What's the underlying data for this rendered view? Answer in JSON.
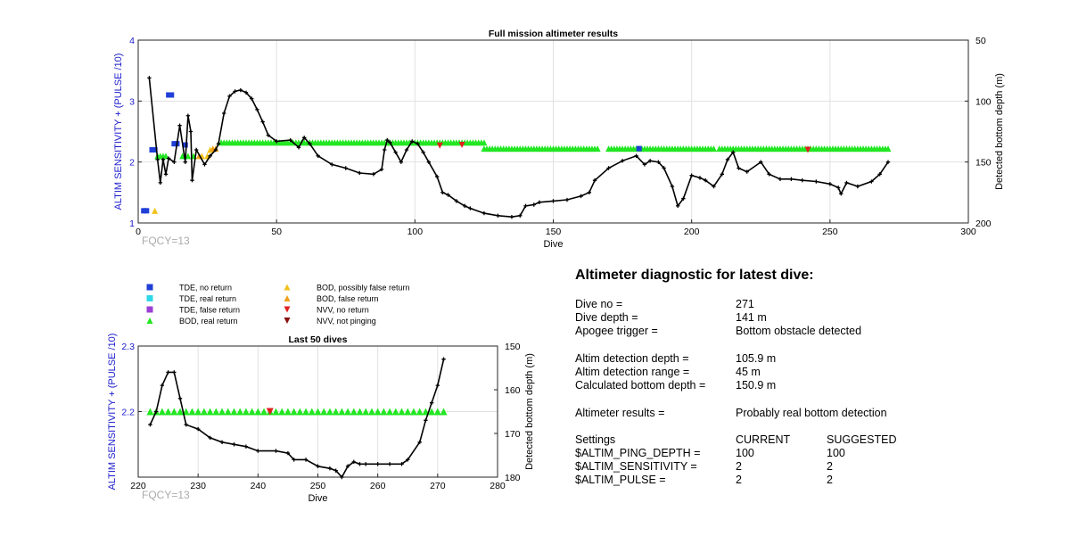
{
  "colors": {
    "axis_blue": "#1a1acc",
    "tde_no_return": "#1f3fd6",
    "tde_real_return": "#2fd8e8",
    "tde_false_return": "#9b3fd6",
    "bod_real_return": "#22e622",
    "bod_possibly_false": "#f2c21a",
    "bod_false_return": "#f0a01a",
    "nvv_no_return": "#e02020",
    "nvv_not_pinging": "#8a1010",
    "altitude_line": "#000000",
    "grid": "#e1e1e1"
  },
  "chart_data": [
    {
      "type": "scatter+line",
      "title": "Full mission altimeter results",
      "xlabel": "Dive",
      "ylabel_left": "ALTIM SENSITIVITY + (PULSE /10)",
      "ylabel_right": "Detected bottom depth (m)",
      "xlim": [
        0,
        300
      ],
      "ylim_left": [
        1,
        4
      ],
      "ylim_right": [
        200,
        50
      ],
      "right_axis_reversed": true,
      "xticks": [
        0,
        50,
        100,
        150,
        200,
        250,
        300
      ],
      "yticks_left": [
        1,
        2,
        3,
        4
      ],
      "yticks_right": [
        50,
        100,
        150,
        200
      ],
      "grid": true,
      "annotation": "FQCY=13",
      "bod_real_return": {
        "y": 2.32,
        "x_ranges": [
          [
            30,
            125
          ]
        ]
      },
      "bod_real_return_low": {
        "y": 2.22,
        "x_ranges": [
          [
            125,
            166
          ],
          [
            170,
            208
          ],
          [
            210,
            271
          ]
        ]
      },
      "bod_real_return_early": {
        "y": 2.1,
        "x": [
          7,
          8,
          9,
          10,
          16,
          18,
          20
        ]
      },
      "tde_no_return": [
        [
          2,
          1.2
        ],
        [
          3,
          1.2
        ],
        [
          5,
          2.2
        ],
        [
          6,
          2.2
        ],
        [
          11,
          3.1
        ],
        [
          12,
          3.1
        ],
        [
          13,
          2.3
        ],
        [
          14,
          2.3
        ],
        [
          17,
          2.28
        ],
        [
          181,
          2.22
        ]
      ],
      "bod_possibly_false": [
        [
          6,
          1.2
        ],
        [
          23,
          2.1
        ],
        [
          25,
          2.1
        ],
        [
          26,
          2.2
        ]
      ],
      "bod_false_return": [
        [
          22,
          2.1
        ],
        [
          27,
          2.22
        ],
        [
          28,
          2.22
        ]
      ],
      "nvv_no_return": [
        [
          109,
          2.27
        ],
        [
          117,
          2.28
        ],
        [
          242,
          2.2
        ]
      ],
      "depth_series": {
        "name": "Detected bottom depth",
        "points": [
          [
            4,
            81
          ],
          [
            7,
            148
          ],
          [
            8,
            167
          ],
          [
            9,
            148
          ],
          [
            10,
            160
          ],
          [
            11,
            147
          ],
          [
            13,
            150
          ],
          [
            15,
            120
          ],
          [
            17,
            150
          ],
          [
            18,
            112
          ],
          [
            19,
            125
          ],
          [
            19.5,
            165
          ],
          [
            21,
            140
          ],
          [
            24,
            152
          ],
          [
            26,
            145
          ],
          [
            28,
            140
          ],
          [
            29,
            135
          ],
          [
            31,
            110
          ],
          [
            33,
            96
          ],
          [
            35,
            92
          ],
          [
            37,
            91
          ],
          [
            39,
            93
          ],
          [
            41,
            98
          ],
          [
            43,
            107
          ],
          [
            45,
            117
          ],
          [
            47,
            128
          ],
          [
            50,
            133
          ],
          [
            55,
            132
          ],
          [
            58,
            138
          ],
          [
            60,
            130
          ],
          [
            62,
            135
          ],
          [
            65,
            145
          ],
          [
            70,
            152
          ],
          [
            75,
            155
          ],
          [
            80,
            159
          ],
          [
            85,
            160
          ],
          [
            88,
            156
          ],
          [
            89,
            140
          ],
          [
            90,
            132
          ],
          [
            91,
            134
          ],
          [
            93,
            142
          ],
          [
            95,
            150
          ],
          [
            97,
            140
          ],
          [
            99,
            133
          ],
          [
            101,
            135
          ],
          [
            103,
            142
          ],
          [
            105,
            150
          ],
          [
            108,
            162
          ],
          [
            110,
            175
          ],
          [
            112,
            177
          ],
          [
            115,
            182
          ],
          [
            118,
            186
          ],
          [
            120,
            188
          ],
          [
            125,
            192
          ],
          [
            130,
            194
          ],
          [
            135,
            195
          ],
          [
            138,
            194
          ],
          [
            140,
            186
          ],
          [
            143,
            185
          ],
          [
            145,
            183
          ],
          [
            150,
            182
          ],
          [
            155,
            181
          ],
          [
            160,
            178
          ],
          [
            163,
            175
          ],
          [
            165,
            165
          ],
          [
            170,
            155
          ],
          [
            175,
            149
          ],
          [
            180,
            145
          ],
          [
            183,
            152
          ],
          [
            185,
            149
          ],
          [
            188,
            150
          ],
          [
            190,
            155
          ],
          [
            193,
            170
          ],
          [
            195,
            186
          ],
          [
            197,
            180
          ],
          [
            200,
            161
          ],
          [
            203,
            163
          ],
          [
            205,
            165
          ],
          [
            208,
            170
          ],
          [
            211,
            160
          ],
          [
            213,
            148
          ],
          [
            215,
            142
          ],
          [
            217,
            155
          ],
          [
            220,
            158
          ],
          [
            225,
            150
          ],
          [
            228,
            160
          ],
          [
            232,
            164
          ],
          [
            236,
            164
          ],
          [
            240,
            165
          ],
          [
            245,
            166
          ],
          [
            250,
            168
          ],
          [
            253,
            171
          ],
          [
            254,
            176
          ],
          [
            256,
            167
          ],
          [
            260,
            170
          ],
          [
            265,
            166
          ],
          [
            268,
            160
          ],
          [
            271,
            150
          ]
        ]
      }
    },
    {
      "type": "scatter+line",
      "title": "Last 50 dives",
      "xlabel": "Dive",
      "ylabel_left": "ALTIM SENSITIVITY + (PULSE /10)",
      "ylabel_right": "Detected bottom depth (m)",
      "xlim": [
        220,
        280
      ],
      "ylim_left": [
        2.1,
        2.3
      ],
      "ylim_right": [
        180,
        150
      ],
      "right_axis_reversed": true,
      "xticks": [
        220,
        230,
        240,
        250,
        260,
        270,
        280
      ],
      "yticks_left": [
        2.2,
        2.3
      ],
      "yticks_right": [
        150,
        160,
        170,
        180
      ],
      "grid": true,
      "annotation": "FQCY=13",
      "bod_real_return": {
        "y": 2.2,
        "x_ranges": [
          [
            222,
            271
          ]
        ]
      },
      "nvv_no_return": [
        [
          242,
          2.2
        ]
      ],
      "depth_series": {
        "name": "Detected bottom depth",
        "points": [
          [
            222,
            168
          ],
          [
            223,
            165
          ],
          [
            224,
            159
          ],
          [
            225,
            156
          ],
          [
            226,
            156
          ],
          [
            227,
            162
          ],
          [
            228,
            168
          ],
          [
            230,
            169
          ],
          [
            232,
            171
          ],
          [
            234,
            172
          ],
          [
            236,
            172.5
          ],
          [
            238,
            173
          ],
          [
            240,
            174
          ],
          [
            243,
            174
          ],
          [
            245,
            174.5
          ],
          [
            246,
            176
          ],
          [
            248,
            176
          ],
          [
            250,
            177.5
          ],
          [
            252,
            178
          ],
          [
            253,
            178.5
          ],
          [
            254,
            180
          ],
          [
            255,
            177.5
          ],
          [
            256,
            176.5
          ],
          [
            257,
            177
          ],
          [
            258,
            177
          ],
          [
            260,
            177
          ],
          [
            262,
            177
          ],
          [
            264,
            177
          ],
          [
            265,
            176
          ],
          [
            267,
            172
          ],
          [
            268,
            167
          ],
          [
            269,
            163
          ],
          [
            270,
            159
          ],
          [
            271,
            153
          ]
        ]
      }
    }
  ],
  "legend": {
    "items": [
      {
        "label": "TDE, no return",
        "marker": "square",
        "color_key": "tde_no_return"
      },
      {
        "label": "TDE, real return",
        "marker": "square",
        "color_key": "tde_real_return"
      },
      {
        "label": "TDE, false return",
        "marker": "square",
        "color_key": "tde_false_return"
      },
      {
        "label": "BOD, real return",
        "marker": "triangle-up",
        "color_key": "bod_real_return"
      },
      {
        "label": "BOD, possibly false return",
        "marker": "triangle-up",
        "color_key": "bod_possibly_false"
      },
      {
        "label": "BOD, false return",
        "marker": "triangle-up",
        "color_key": "bod_false_return"
      },
      {
        "label": "NVV, no return",
        "marker": "triangle-down",
        "color_key": "nvv_no_return"
      },
      {
        "label": "NVV, not pinging",
        "marker": "triangle-down",
        "color_key": "nvv_not_pinging"
      }
    ]
  },
  "diagnostic": {
    "title": "Altimeter diagnostic for latest dive:",
    "dive_no": {
      "label": "Dive no =",
      "value": "271"
    },
    "dive_depth": {
      "label": "Dive depth =",
      "value": "141 m"
    },
    "apogee_trigger": {
      "label": "Apogee trigger =",
      "value": "Bottom obstacle detected"
    },
    "altim_detection_depth": {
      "label": "Altim detection depth =",
      "value": "105.9 m"
    },
    "altim_detection_range": {
      "label": "Altim detection range =",
      "value": "45 m"
    },
    "calculated_bottom_depth": {
      "label": "Calculated bottom depth =",
      "value": "150.9 m"
    },
    "altimeter_results": {
      "label": "Altimeter results =",
      "value": "Probably real bottom detection"
    },
    "settings": {
      "header": {
        "label": "Settings",
        "current": "CURRENT",
        "suggested": "SUGGESTED"
      },
      "rows": [
        {
          "label": "$ALTIM_PING_DEPTH =",
          "current": "100",
          "suggested": "100"
        },
        {
          "label": "$ALTIM_SENSITIVITY =",
          "current": "2",
          "suggested": "2"
        },
        {
          "label": "$ALTIM_PULSE =",
          "current": "2",
          "suggested": "2"
        }
      ]
    }
  }
}
